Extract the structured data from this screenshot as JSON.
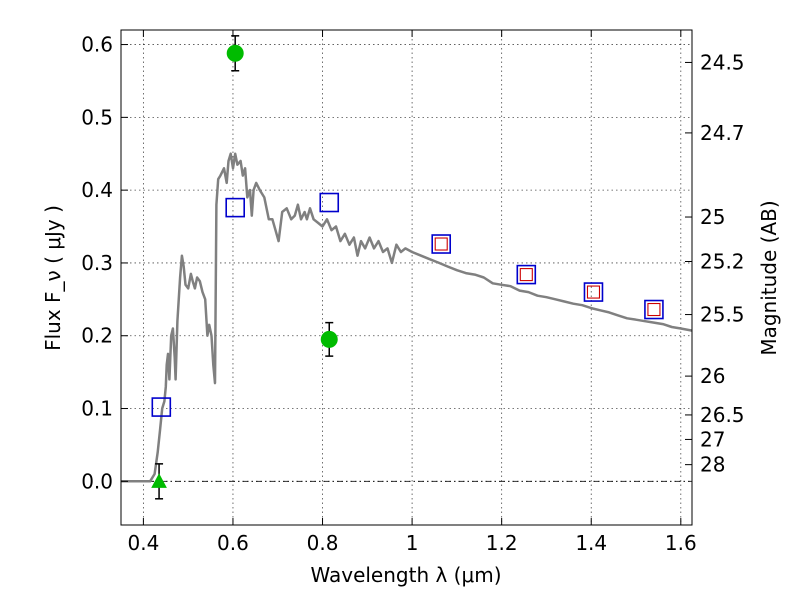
{
  "chart_data": {
    "type": "scatter",
    "xlabel": "Wavelength  λ (μm)",
    "ylabel": "Flux  F_ν  ( μJy )",
    "ylabel_right": "Magnitude (AB)",
    "xlim": [
      0.35,
      1.625
    ],
    "ylim": [
      -0.06,
      0.62
    ],
    "grid": true,
    "x_ticks": [
      {
        "value": 0.4,
        "label": "0.4"
      },
      {
        "value": 0.6,
        "label": "0.6"
      },
      {
        "value": 0.8,
        "label": "0.8"
      },
      {
        "value": 1.0,
        "label": "1"
      },
      {
        "value": 1.2,
        "label": "1.2"
      },
      {
        "value": 1.4,
        "label": "1.4"
      },
      {
        "value": 1.6,
        "label": "1.6"
      }
    ],
    "y_ticks": [
      {
        "value": 0.0,
        "label": "0.0"
      },
      {
        "value": 0.1,
        "label": "0.1"
      },
      {
        "value": 0.2,
        "label": "0.2"
      },
      {
        "value": 0.3,
        "label": "0.3"
      },
      {
        "value": 0.4,
        "label": "0.4"
      },
      {
        "value": 0.5,
        "label": "0.5"
      },
      {
        "value": 0.6,
        "label": "0.6"
      }
    ],
    "mag_ticks": [
      {
        "mag": 24.5,
        "label": "24.5"
      },
      {
        "mag": 24.7,
        "label": "24.7"
      },
      {
        "mag": 25.0,
        "label": "25"
      },
      {
        "mag": 25.2,
        "label": "25.2"
      },
      {
        "mag": 25.5,
        "label": "25.5"
      },
      {
        "mag": 26.0,
        "label": "26"
      },
      {
        "mag": 26.5,
        "label": "26.5"
      },
      {
        "mag": 27.0,
        "label": "27"
      },
      {
        "mag": 28.0,
        "label": "28"
      }
    ],
    "zero_line": 0.0,
    "series": [
      {
        "type": "line",
        "color": "#808080",
        "points": [
          [
            0.35,
            0.0
          ],
          [
            0.415,
            0.0
          ],
          [
            0.425,
            0.01
          ],
          [
            0.432,
            0.04
          ],
          [
            0.437,
            0.07
          ],
          [
            0.442,
            0.1
          ],
          [
            0.447,
            0.11
          ],
          [
            0.45,
            0.13
          ],
          [
            0.452,
            0.16
          ],
          [
            0.455,
            0.175
          ],
          [
            0.458,
            0.14
          ],
          [
            0.462,
            0.2
          ],
          [
            0.466,
            0.21
          ],
          [
            0.47,
            0.17
          ],
          [
            0.472,
            0.14
          ],
          [
            0.476,
            0.22
          ],
          [
            0.482,
            0.28
          ],
          [
            0.486,
            0.31
          ],
          [
            0.49,
            0.295
          ],
          [
            0.494,
            0.27
          ],
          [
            0.5,
            0.265
          ],
          [
            0.506,
            0.285
          ],
          [
            0.51,
            0.275
          ],
          [
            0.515,
            0.265
          ],
          [
            0.52,
            0.28
          ],
          [
            0.526,
            0.275
          ],
          [
            0.532,
            0.26
          ],
          [
            0.538,
            0.25
          ],
          [
            0.543,
            0.2
          ],
          [
            0.547,
            0.215
          ],
          [
            0.552,
            0.2
          ],
          [
            0.556,
            0.16
          ],
          [
            0.56,
            0.135
          ],
          [
            0.563,
            0.38
          ],
          [
            0.567,
            0.415
          ],
          [
            0.572,
            0.42
          ],
          [
            0.58,
            0.43
          ],
          [
            0.586,
            0.41
          ],
          [
            0.59,
            0.44
          ],
          [
            0.595,
            0.45
          ],
          [
            0.6,
            0.43
          ],
          [
            0.605,
            0.45
          ],
          [
            0.61,
            0.435
          ],
          [
            0.617,
            0.44
          ],
          [
            0.622,
            0.42
          ],
          [
            0.627,
            0.43
          ],
          [
            0.632,
            0.39
          ],
          [
            0.638,
            0.4
          ],
          [
            0.642,
            0.365
          ],
          [
            0.646,
            0.4
          ],
          [
            0.652,
            0.41
          ],
          [
            0.66,
            0.4
          ],
          [
            0.67,
            0.39
          ],
          [
            0.68,
            0.36
          ],
          [
            0.688,
            0.36
          ],
          [
            0.695,
            0.345
          ],
          [
            0.702,
            0.33
          ],
          [
            0.71,
            0.37
          ],
          [
            0.72,
            0.375
          ],
          [
            0.73,
            0.36
          ],
          [
            0.738,
            0.365
          ],
          [
            0.745,
            0.38
          ],
          [
            0.752,
            0.36
          ],
          [
            0.76,
            0.37
          ],
          [
            0.765,
            0.36
          ],
          [
            0.772,
            0.375
          ],
          [
            0.78,
            0.36
          ],
          [
            0.79,
            0.355
          ],
          [
            0.8,
            0.35
          ],
          [
            0.81,
            0.36
          ],
          [
            0.82,
            0.345
          ],
          [
            0.83,
            0.35
          ],
          [
            0.84,
            0.33
          ],
          [
            0.85,
            0.34
          ],
          [
            0.86,
            0.325
          ],
          [
            0.87,
            0.335
          ],
          [
            0.878,
            0.31
          ],
          [
            0.886,
            0.33
          ],
          [
            0.895,
            0.32
          ],
          [
            0.905,
            0.335
          ],
          [
            0.915,
            0.32
          ],
          [
            0.925,
            0.33
          ],
          [
            0.935,
            0.315
          ],
          [
            0.945,
            0.32
          ],
          [
            0.955,
            0.3
          ],
          [
            0.965,
            0.325
          ],
          [
            0.975,
            0.315
          ],
          [
            0.985,
            0.32
          ],
          [
            1.0,
            0.315
          ],
          [
            1.02,
            0.31
          ],
          [
            1.04,
            0.305
          ],
          [
            1.06,
            0.3
          ],
          [
            1.08,
            0.295
          ],
          [
            1.1,
            0.29
          ],
          [
            1.12,
            0.286
          ],
          [
            1.14,
            0.284
          ],
          [
            1.16,
            0.28
          ],
          [
            1.18,
            0.272
          ],
          [
            1.2,
            0.27
          ],
          [
            1.22,
            0.268
          ],
          [
            1.24,
            0.262
          ],
          [
            1.26,
            0.26
          ],
          [
            1.28,
            0.255
          ],
          [
            1.3,
            0.253
          ],
          [
            1.32,
            0.25
          ],
          [
            1.34,
            0.247
          ],
          [
            1.36,
            0.244
          ],
          [
            1.38,
            0.242
          ],
          [
            1.4,
            0.238
          ],
          [
            1.42,
            0.235
          ],
          [
            1.44,
            0.232
          ],
          [
            1.46,
            0.228
          ],
          [
            1.48,
            0.224
          ],
          [
            1.5,
            0.222
          ],
          [
            1.52,
            0.22
          ],
          [
            1.54,
            0.218
          ],
          [
            1.56,
            0.216
          ],
          [
            1.58,
            0.212
          ],
          [
            1.6,
            0.21
          ],
          [
            1.625,
            0.207
          ]
        ]
      },
      {
        "type": "open-square",
        "color": "#0000cc",
        "points": [
          [
            0.44,
            0.102
          ],
          [
            0.605,
            0.376
          ],
          [
            0.815,
            0.383
          ],
          [
            1.065,
            0.326
          ],
          [
            1.255,
            0.284
          ],
          [
            1.405,
            0.26
          ],
          [
            1.54,
            0.236
          ]
        ]
      },
      {
        "type": "small-open-square",
        "color": "#cc0000",
        "points": [
          [
            1.065,
            0.326
          ],
          [
            1.255,
            0.284
          ],
          [
            1.405,
            0.26
          ],
          [
            1.54,
            0.236
          ]
        ]
      },
      {
        "type": "filled-circle",
        "color": "#00bb00",
        "errorbar_color": "#000000",
        "points": [
          {
            "x": 0.605,
            "y": 0.588,
            "err": 0.024
          },
          {
            "x": 0.815,
            "y": 0.195,
            "err": 0.023
          }
        ]
      },
      {
        "type": "triangle",
        "color": "#00bb00",
        "errorbar_color": "#000000",
        "points": [
          {
            "x": 0.435,
            "y": 0.0,
            "err": 0.024
          }
        ]
      }
    ]
  }
}
